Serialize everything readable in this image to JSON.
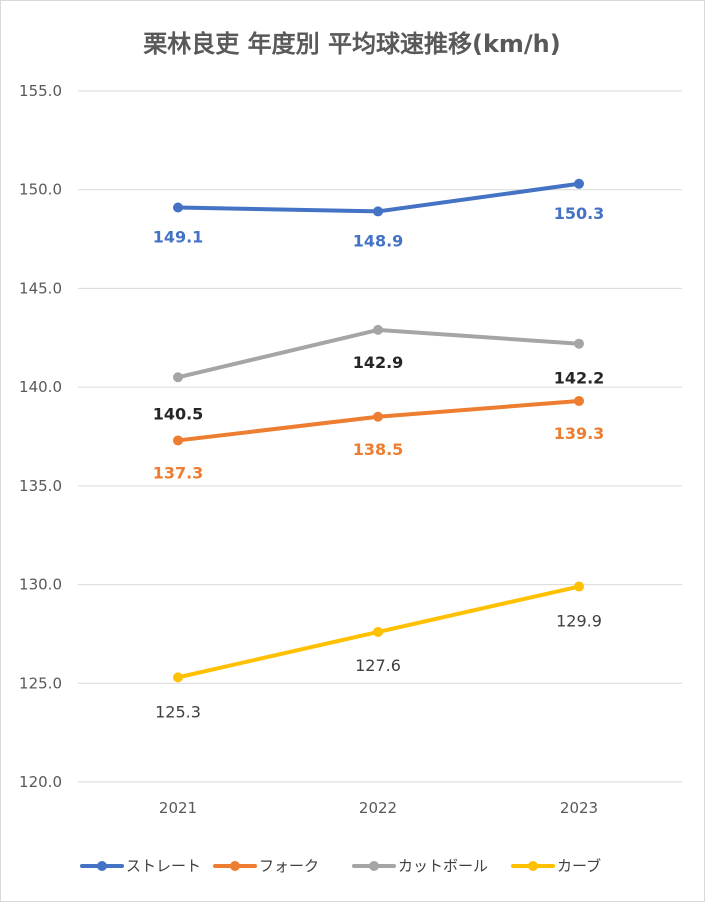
{
  "chart_data": {
    "type": "line",
    "title": "栗林良吏 年度別 平均球速推移(km/h)",
    "categories": [
      "2021",
      "2022",
      "2023"
    ],
    "ylim": [
      120,
      155
    ],
    "yticks": [
      "120.0",
      "125.0",
      "130.0",
      "135.0",
      "140.0",
      "145.0",
      "150.0",
      "155.0"
    ],
    "grid": true,
    "legend_position": "bottom",
    "series": [
      {
        "name": "ストレート",
        "color": "#4472C4",
        "values": [
          149.1,
          148.9,
          150.3
        ],
        "labels": [
          "149.1",
          "148.9",
          "150.3"
        ],
        "label_bold": true
      },
      {
        "name": "フォーク",
        "color": "#ED7D31",
        "values": [
          137.3,
          138.5,
          139.3
        ],
        "labels": [
          "137.3",
          "138.5",
          "139.3"
        ],
        "label_bold": true
      },
      {
        "name": "カットボール",
        "color": "#A5A5A5",
        "values": [
          140.5,
          142.9,
          142.2
        ],
        "labels": [
          "140.5",
          "142.9",
          "142.2"
        ],
        "label_bold": true,
        "label_color": "#262626"
      },
      {
        "name": "カーブ",
        "color": "#FFC000",
        "values": [
          125.3,
          127.6,
          129.9
        ],
        "labels": [
          "125.3",
          "127.6",
          "129.9"
        ],
        "label_bold": false,
        "label_color": "#404040"
      }
    ]
  }
}
